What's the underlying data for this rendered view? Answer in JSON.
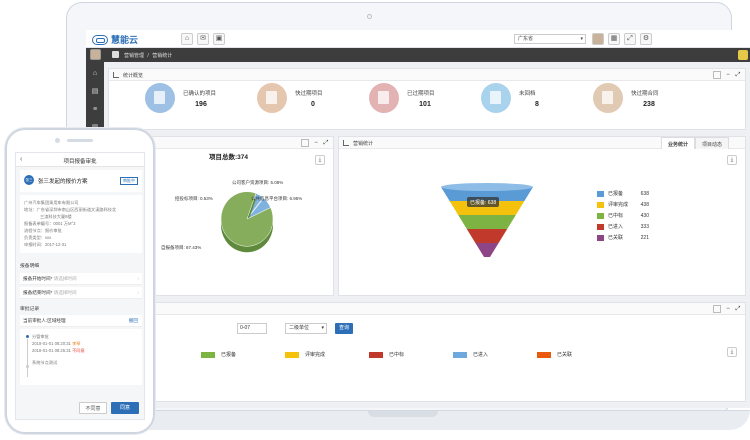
{
  "app": {
    "logo_text": "慧能云",
    "region": "广东省"
  },
  "breadcrumb": {
    "root": "营销管理",
    "separator": "/",
    "current": "营销统计"
  },
  "overview": {
    "title": "统计概览",
    "stats": [
      {
        "label": "已确认的项目",
        "value": "196",
        "color": "#9ec0e4"
      },
      {
        "label": "快过期项目",
        "value": "0",
        "color": "#e5c7b0"
      },
      {
        "label": "已过期项目",
        "value": "101",
        "color": "#e3b2b2"
      },
      {
        "label": "未回档",
        "value": "8",
        "color": "#a9d3ec"
      },
      {
        "label": "快过期合同",
        "value": "238",
        "color": "#e1cab4"
      }
    ]
  },
  "pie_panel": {
    "total_label": "项目总数:374",
    "labels": [
      "公司客户资源项目: 5.08%",
      "招投标项目: 0.53%",
      "公共信息平台项目: 6.95%",
      "自报备项目: 87.43%"
    ]
  },
  "funnel_panel": {
    "title": "营销统计",
    "tabs": [
      "业务统计",
      "项目动态"
    ],
    "tooltip": "已报备: 638",
    "legend": [
      {
        "name": "已报备",
        "value": "638",
        "color": "#5a9bd5"
      },
      {
        "name": "评审完成",
        "value": "438",
        "color": "#f4c20d"
      },
      {
        "name": "已中标",
        "value": "430",
        "color": "#7cb342"
      },
      {
        "name": "已进入",
        "value": "333",
        "color": "#c0392b"
      },
      {
        "name": "已关联",
        "value": "221",
        "color": "#8e4585"
      }
    ]
  },
  "bottom_panel": {
    "date_value": "0-07",
    "select_value": "二级单位",
    "query_label": "查询",
    "legend": [
      {
        "name": "已报备",
        "color": "#7cb342"
      },
      {
        "name": "评审完成",
        "color": "#f4c20d"
      },
      {
        "name": "已中标",
        "color": "#c0392b"
      },
      {
        "name": "已进入",
        "color": "#6fa8dc"
      },
      {
        "name": "已关联",
        "color": "#e8590c"
      }
    ]
  },
  "chart_data": [
    {
      "type": "pie",
      "title": "项目总数:374",
      "categories": [
        "公司客户资源项目",
        "招投标项目",
        "公共信息平台项目",
        "自报备项目"
      ],
      "values": [
        5.08,
        0.53,
        6.95,
        87.43
      ],
      "unit": "%"
    },
    {
      "type": "bar",
      "title": "营销统计",
      "categories": [
        "已报备",
        "评审完成",
        "已中标",
        "已进入",
        "已关联"
      ],
      "values": [
        638,
        438,
        430,
        333,
        221
      ]
    }
  ],
  "mobile": {
    "title": "项目报备审批",
    "project_name": "张三发起的报价方案",
    "badge": "审批中",
    "company": "广州汽车集团乘用车有限公司",
    "address_1": "地址：广东省深圳市南山区西丽街道文溪路科技北",
    "address_2": "三渣科技大厦8楼",
    "applicant": "报备表单编号：0001 万M°3",
    "node": "流程节点：报价审批",
    "owner": "负责类型：xxx",
    "date": "申报时间：2017-12-31",
    "section_info": "报备明细",
    "start_time_label": "报备开始时间*",
    "start_time_placeholder": "请选择时间",
    "end_time_label": "报备结束时间*",
    "end_time_placeholder": "请选择时间",
    "section_log": "审批记录",
    "approver_label": "当前审批人:区域经理",
    "revoke": "撤回",
    "log_1": "分管审批",
    "log_1a": "2018-01-01 08:20:31",
    "log_1a_tag": "李琴",
    "log_1b": "2018-01-01 08:25:31",
    "log_1b_tag": "不同意",
    "log_2": "系统节点测试",
    "btn_reject": "不同意",
    "btn_approve": "同意"
  }
}
